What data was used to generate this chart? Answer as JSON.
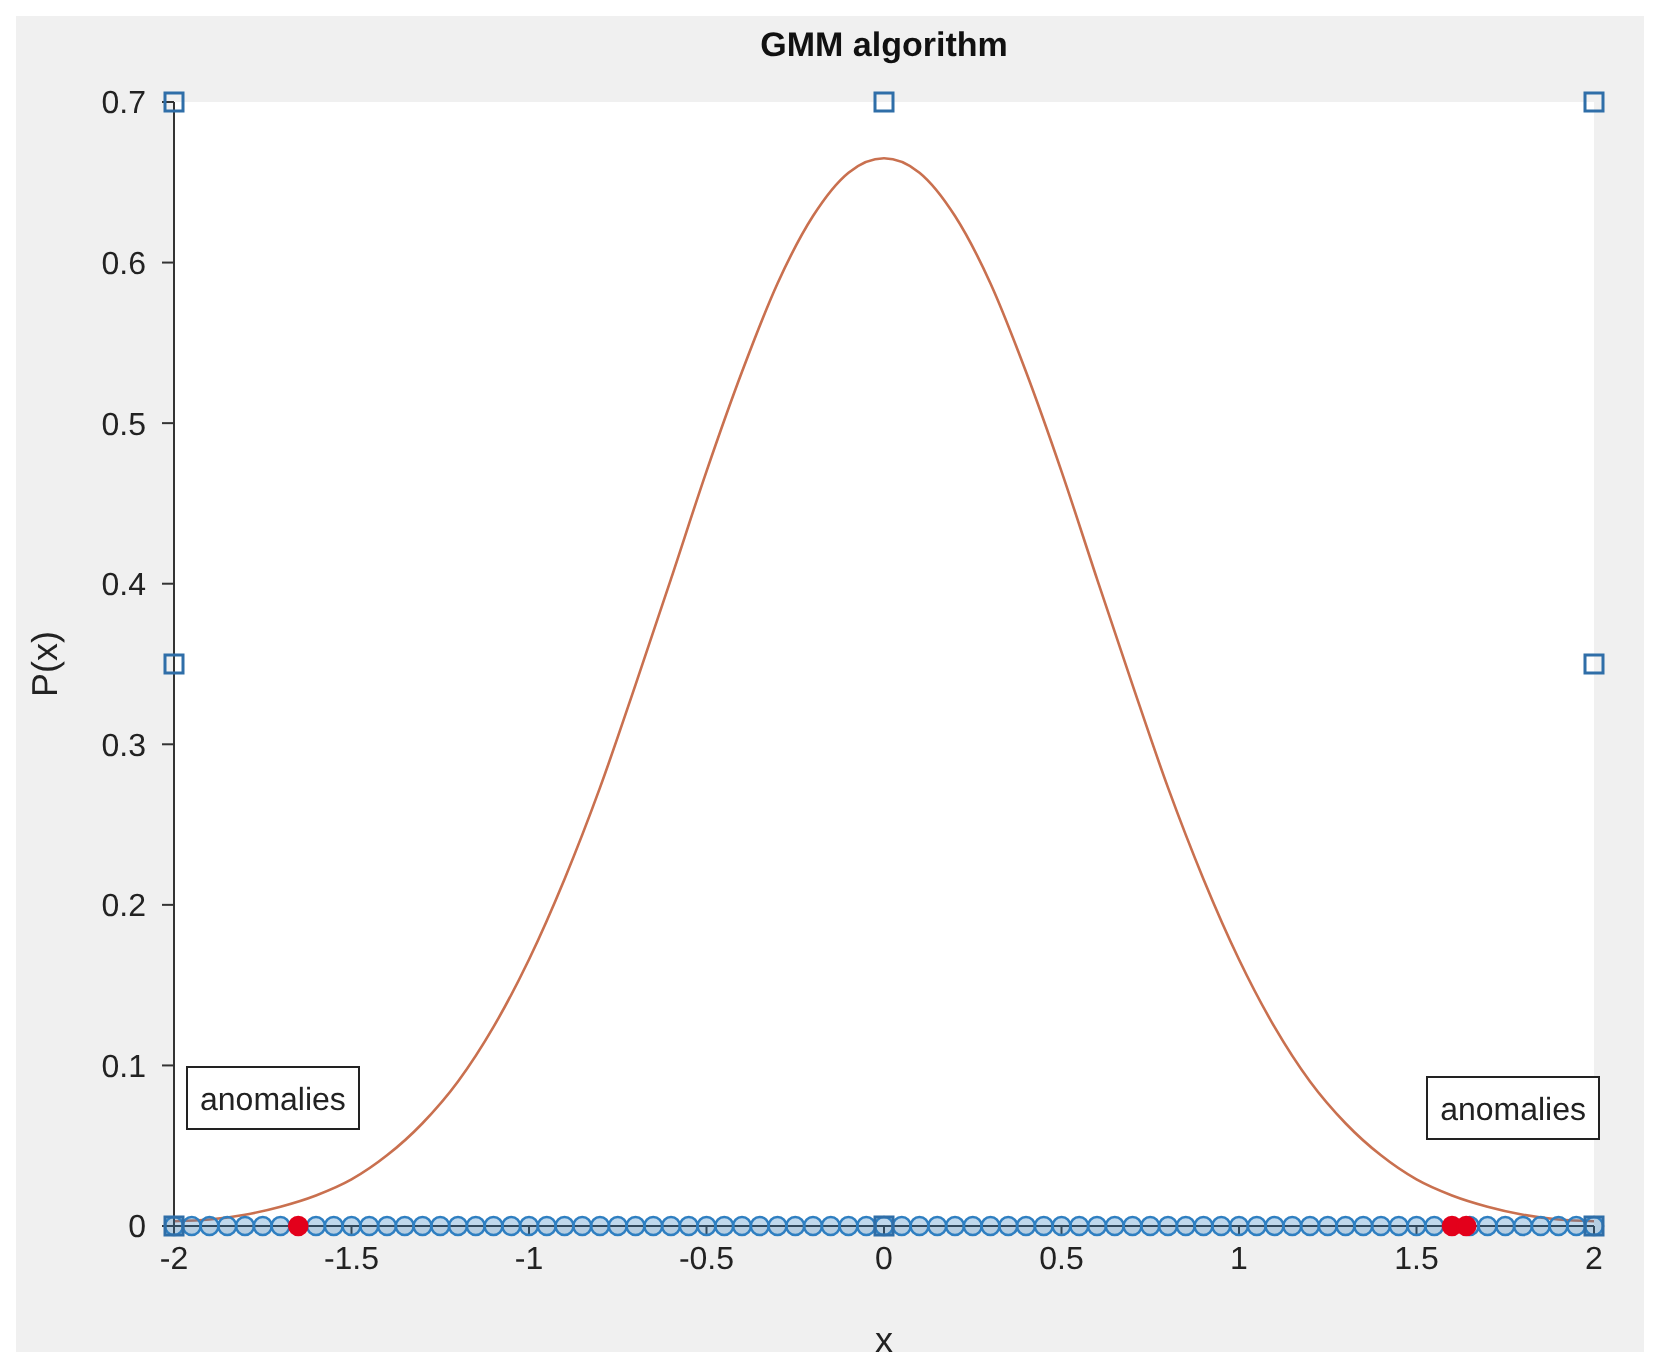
{
  "chart_data": {
    "type": "line",
    "title": "GMM algorithm",
    "xlabel": "x",
    "ylabel": "P(x)",
    "xlim": [
      -2,
      2
    ],
    "xticks": [
      -2,
      -1.5,
      -1,
      -0.5,
      0,
      0.5,
      1,
      1.5,
      2
    ],
    "ylim": [
      0,
      0.7
    ],
    "yticks": [
      0,
      0.1,
      0.2,
      0.3,
      0.4,
      0.5,
      0.6,
      0.7
    ],
    "grid": false,
    "series": [
      {
        "type": "scatter",
        "color": "#2f7fc1",
        "marker": "circle",
        "x": [
          -2,
          -1.95,
          -1.9,
          -1.85,
          -1.8,
          -1.75,
          -1.7,
          -1.6,
          -1.55,
          -1.5,
          -1.45,
          -1.4,
          -1.35,
          -1.3,
          -1.25,
          -1.2,
          -1.15,
          -1.1,
          -1.05,
          -1,
          -0.95,
          -0.9,
          -0.85,
          -0.8,
          -0.75,
          -0.7,
          -0.65,
          -0.6,
          -0.55,
          -0.5,
          -0.45,
          -0.4,
          -0.35,
          -0.3,
          -0.25,
          -0.2,
          -0.15,
          -0.1,
          -0.05,
          0,
          0.05,
          0.1,
          0.15,
          0.2,
          0.25,
          0.3,
          0.35,
          0.4,
          0.45,
          0.5,
          0.55,
          0.6,
          0.65,
          0.7,
          0.75,
          0.8,
          0.85,
          0.9,
          0.95,
          1,
          1.05,
          1.1,
          1.15,
          1.2,
          1.25,
          1.3,
          1.35,
          1.4,
          1.45,
          1.5,
          1.55,
          1.65,
          1.7,
          1.75,
          1.8,
          1.85,
          1.9,
          1.95,
          2
        ],
        "values": [
          0,
          0,
          0,
          0,
          0,
          0,
          0,
          0,
          0,
          0,
          0,
          0,
          0,
          0,
          0,
          0,
          0,
          0,
          0,
          0,
          0,
          0,
          0,
          0,
          0,
          0,
          0,
          0,
          0,
          0,
          0,
          0,
          0,
          0,
          0,
          0,
          0,
          0,
          0,
          0,
          0,
          0,
          0,
          0,
          0,
          0,
          0,
          0,
          0,
          0,
          0,
          0,
          0,
          0,
          0,
          0,
          0,
          0,
          0,
          0,
          0,
          0,
          0,
          0,
          0,
          0,
          0,
          0,
          0,
          0,
          0,
          0,
          0,
          0,
          0,
          0,
          0,
          0,
          0
        ]
      },
      {
        "type": "line",
        "color": "#c9704f",
        "marker": "none",
        "line_style": "solid",
        "x": [
          -2,
          -1.9,
          -1.8,
          -1.7,
          -1.6,
          -1.5,
          -1.4,
          -1.3,
          -1.2,
          -1.1,
          -1,
          -0.9,
          -0.8,
          -0.7,
          -0.6,
          -0.5,
          -0.4,
          -0.3,
          -0.2,
          -0.1,
          0,
          0.1,
          0.2,
          0.3,
          0.4,
          0.5,
          0.6,
          0.7,
          0.8,
          0.9,
          1,
          1.1,
          1.2,
          1.3,
          1.4,
          1.5,
          1.6,
          1.7,
          1.8,
          1.9,
          2
        ],
        "values": [
          0.003,
          0.004,
          0.007,
          0.012,
          0.019,
          0.029,
          0.044,
          0.064,
          0.09,
          0.124,
          0.166,
          0.216,
          0.273,
          0.337,
          0.403,
          0.47,
          0.532,
          0.587,
          0.629,
          0.656,
          0.665,
          0.656,
          0.629,
          0.587,
          0.532,
          0.47,
          0.403,
          0.337,
          0.273,
          0.216,
          0.166,
          0.124,
          0.09,
          0.064,
          0.044,
          0.029,
          0.019,
          0.012,
          0.007,
          0.004,
          0.003
        ]
      },
      {
        "type": "scatter",
        "color": "#e3001b",
        "marker": "circle",
        "x": [
          -1.65,
          1.6,
          1.64
        ],
        "values": [
          0,
          0,
          0
        ]
      }
    ],
    "annotations": [
      "anomalies",
      "anomalies"
    ]
  }
}
